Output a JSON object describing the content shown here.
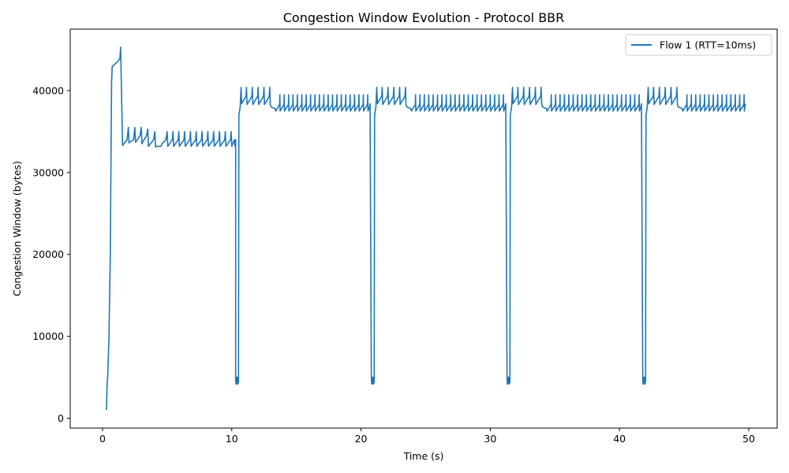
{
  "chart_data": {
    "type": "line",
    "title": "Congestion Window Evolution - Protocol BBR",
    "xlabel": "Time (s)",
    "ylabel": "Congestion Window (bytes)",
    "xlim": [
      -2.5,
      52.2
    ],
    "ylim": [
      -1200,
      47500
    ],
    "xticks": [
      0,
      10,
      20,
      30,
      40,
      50
    ],
    "yticks": [
      0,
      10000,
      20000,
      30000,
      40000
    ],
    "legend": "top-right",
    "grid": false,
    "series": [
      {
        "name": "Flow 1 (RTT=10ms)",
        "color": "#1f77b4",
        "cycle_period_s": 10.5,
        "cycle_starts_s": [
          10.3,
          20.8,
          31.3,
          41.8
        ],
        "probe_rtt_floor_bytes": 4200,
        "probe_bw_low_bytes": 37500,
        "probe_bw_high_bytes": 39500,
        "x": [
          0.3,
          0.32,
          0.35,
          0.4,
          0.5,
          0.6,
          0.7,
          0.75,
          0.8,
          1.0,
          1.2,
          1.35,
          1.4,
          1.55,
          1.65,
          1.9,
          2.0,
          2.05,
          2.1,
          2.4,
          2.5,
          2.55,
          2.6,
          2.9,
          3.0,
          3.05,
          3.1,
          3.4,
          3.5,
          3.55,
          3.6,
          3.95,
          4.05,
          4.1,
          4.15,
          4.5,
          4.55,
          4.6,
          4.9,
          5.0,
          5.05,
          5.4,
          5.45,
          5.5,
          5.85,
          5.9,
          5.95,
          6.3,
          6.35,
          6.4,
          6.75,
          6.8,
          6.85,
          7.2,
          7.25,
          7.3,
          7.65,
          7.7,
          7.75,
          8.1,
          8.15,
          8.2,
          8.55,
          8.6,
          8.65,
          9.0,
          9.05,
          9.1,
          9.45,
          9.5,
          9.55,
          9.9,
          9.95,
          10.0,
          10.2,
          10.25,
          10.3
        ],
        "y": [
          1000,
          1800,
          4000,
          5000,
          10000,
          20000,
          41000,
          43000,
          43000,
          43300,
          43600,
          44000,
          45300,
          33300,
          33500,
          34000,
          35500,
          33600,
          33700,
          34000,
          35500,
          33700,
          33800,
          34500,
          35500,
          33500,
          33700,
          34500,
          35300,
          33200,
          33300,
          34000,
          35000,
          33100,
          33200,
          33200,
          33300,
          33500,
          34000,
          35000,
          33200,
          34000,
          35000,
          33200,
          34000,
          35000,
          33200,
          34000,
          35000,
          33200,
          34000,
          35000,
          33200,
          34000,
          35000,
          33200,
          34000,
          35000,
          33200,
          34000,
          35000,
          33200,
          34000,
          35000,
          33200,
          34000,
          35000,
          33200,
          34000,
          35000,
          33200,
          34000,
          35000,
          33200,
          34000,
          33200,
          34000
        ]
      }
    ]
  }
}
